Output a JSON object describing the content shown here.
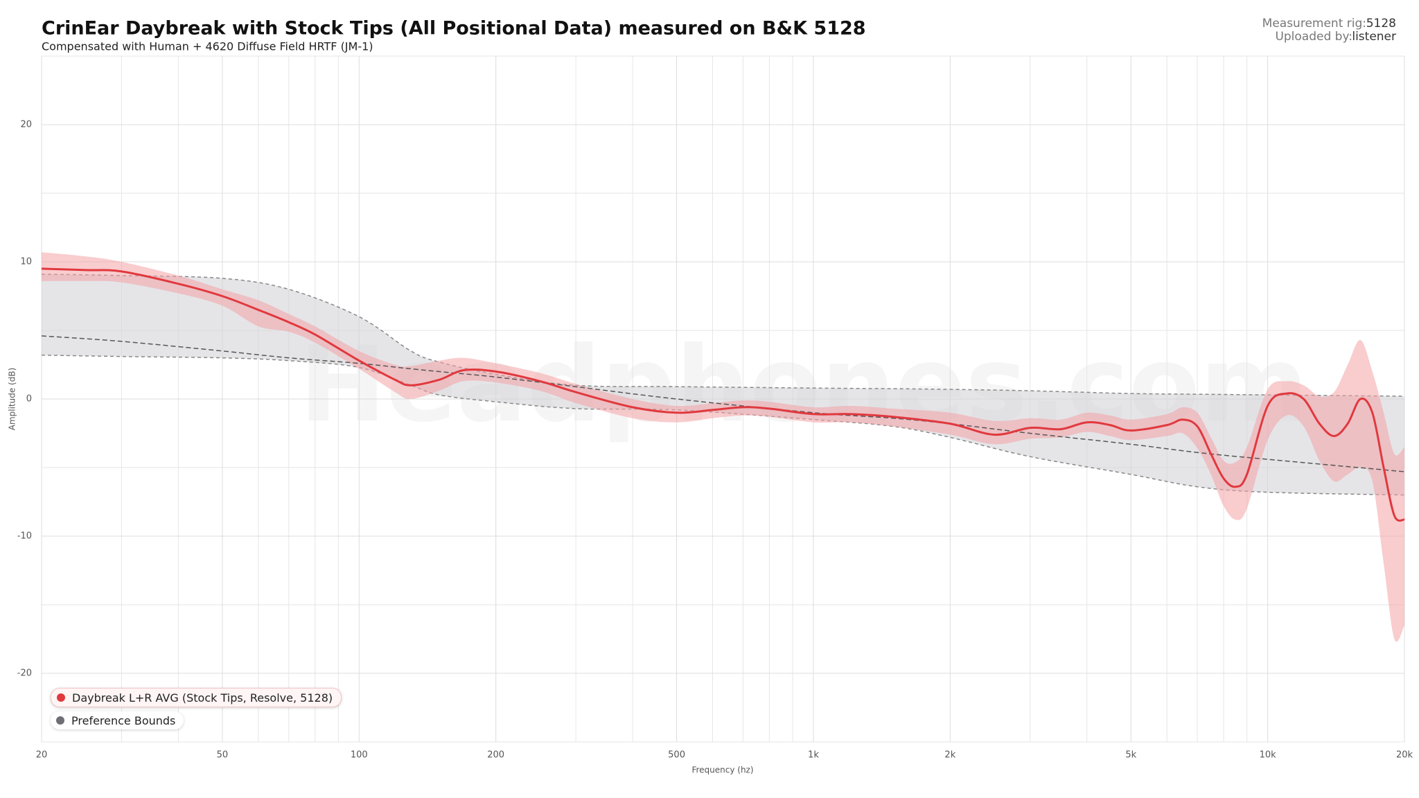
{
  "header": {
    "rig_label": "Measurement rig:",
    "rig": "5128",
    "uploader_label": "Uploaded by:",
    "uploader": "listener",
    "watermark": "Headphones.com"
  },
  "chart_data": {
    "type": "line",
    "title": "CrinEar Daybreak with Stock Tips (All Positional Data) measured on B&K 5128",
    "subtitle": "Compensated with Human + 4620 Diffuse Field HRTF (JM-1)",
    "x_label": "Frequency (hz)",
    "y_label": "Amplitude (dB)",
    "log_x": true,
    "grid": true,
    "xlim": [
      20,
      20000
    ],
    "ylim": [
      -25,
      25
    ],
    "xticks": [
      20,
      50,
      100,
      200,
      500,
      {
        "value": 1000,
        "label": "1k"
      },
      {
        "value": 2000,
        "label": "2k"
      },
      {
        "value": 5000,
        "label": "5k"
      },
      {
        "value": 10000,
        "label": "10k"
      },
      {
        "value": 20000,
        "label": "20k"
      }
    ],
    "minor_xticks": [
      30,
      40,
      60,
      70,
      80,
      90,
      300,
      400,
      600,
      700,
      800,
      900,
      3000,
      4000,
      6000,
      7000,
      8000,
      9000
    ],
    "yticks": [
      -20,
      -10,
      0,
      10,
      20
    ],
    "minor_yticks": [
      -25,
      -15,
      -5,
      5,
      15,
      25
    ],
    "series": [
      {
        "name": "Daybreak L+R AVG (Stock Tips, Resolve, 5128)",
        "color": "#e0393e",
        "band_color": "#f4a3a6",
        "x": [
          20,
          25,
          30,
          40,
          50,
          60,
          70,
          80,
          100,
          120,
          130,
          150,
          170,
          200,
          250,
          300,
          400,
          500,
          600,
          700,
          800,
          1000,
          1200,
          1500,
          2000,
          2500,
          3000,
          3500,
          4000,
          4500,
          5000,
          6000,
          6500,
          7000,
          7500,
          8000,
          8500,
          9000,
          10000,
          11000,
          12000,
          13000,
          14000,
          15000,
          16000,
          17000,
          18000,
          19000,
          20000
        ],
        "values": [
          9.5,
          9.4,
          9.3,
          8.4,
          7.5,
          6.5,
          5.6,
          4.7,
          2.8,
          1.4,
          1.0,
          1.4,
          2.1,
          2.0,
          1.3,
          0.5,
          -0.6,
          -1.0,
          -0.8,
          -0.6,
          -0.7,
          -1.1,
          -1.1,
          -1.3,
          -1.8,
          -2.6,
          -2.1,
          -2.2,
          -1.7,
          -1.9,
          -2.3,
          -1.9,
          -1.5,
          -2.0,
          -4.0,
          -5.8,
          -6.4,
          -5.5,
          -0.5,
          0.4,
          0.0,
          -1.8,
          -2.7,
          -1.8,
          0.0,
          -1.0,
          -5.0,
          -8.5,
          -8.8
        ],
        "upper": [
          10.7,
          10.4,
          10.0,
          9.0,
          8.0,
          7.2,
          6.2,
          5.3,
          3.5,
          2.5,
          2.4,
          2.8,
          3.0,
          2.6,
          1.9,
          1.1,
          0.0,
          -0.5,
          -0.3,
          -0.1,
          -0.2,
          -0.6,
          -0.5,
          -0.7,
          -1.0,
          -1.6,
          -1.4,
          -1.5,
          -1.0,
          -1.2,
          -1.5,
          -1.1,
          -0.6,
          -1.0,
          -2.8,
          -4.5,
          -4.6,
          -3.5,
          0.7,
          1.3,
          1.0,
          0.2,
          0.5,
          2.5,
          4.3,
          2.0,
          -1.0,
          -4.0,
          -3.5
        ],
        "lower": [
          8.6,
          8.6,
          8.5,
          7.7,
          6.8,
          5.3,
          4.9,
          4.1,
          2.2,
          0.5,
          0.0,
          0.6,
          1.3,
          1.2,
          0.6,
          -0.3,
          -1.4,
          -1.7,
          -1.4,
          -1.2,
          -1.3,
          -1.7,
          -1.7,
          -2.0,
          -2.6,
          -3.3,
          -2.9,
          -2.8,
          -2.4,
          -2.7,
          -3.0,
          -2.7,
          -2.5,
          -3.6,
          -5.5,
          -7.8,
          -8.8,
          -8.0,
          -3.0,
          -1.2,
          -2.0,
          -4.5,
          -6.0,
          -5.5,
          -5.0,
          -6.0,
          -12.0,
          -17.5,
          -16.5
        ]
      },
      {
        "name": "Preference Bounds",
        "color": "#6e6e73",
        "band_color": "#d4d4d8",
        "x": [
          20,
          30,
          50,
          70,
          100,
          130,
          150,
          200,
          300,
          500,
          1000,
          1500,
          2000,
          3000,
          5000,
          7000,
          10000,
          20000
        ],
        "values": [
          4.6,
          4.2,
          3.5,
          3.0,
          2.6,
          2.2,
          2.0,
          1.6,
          0.9,
          0.0,
          -1.0,
          -1.4,
          -1.8,
          -2.5,
          -3.3,
          -3.9,
          -4.4,
          -5.3
        ],
        "upper": [
          9.1,
          9.0,
          8.8,
          8.0,
          6.0,
          3.5,
          2.7,
          1.8,
          1.0,
          0.9,
          0.8,
          0.75,
          0.7,
          0.6,
          0.4,
          0.35,
          0.3,
          0.2
        ],
        "lower": [
          3.2,
          3.1,
          3.0,
          2.8,
          2.3,
          1.0,
          0.3,
          -0.2,
          -0.7,
          -0.8,
          -1.5,
          -2.0,
          -2.8,
          -4.2,
          -5.5,
          -6.4,
          -6.8,
          -7.0
        ]
      }
    ]
  }
}
